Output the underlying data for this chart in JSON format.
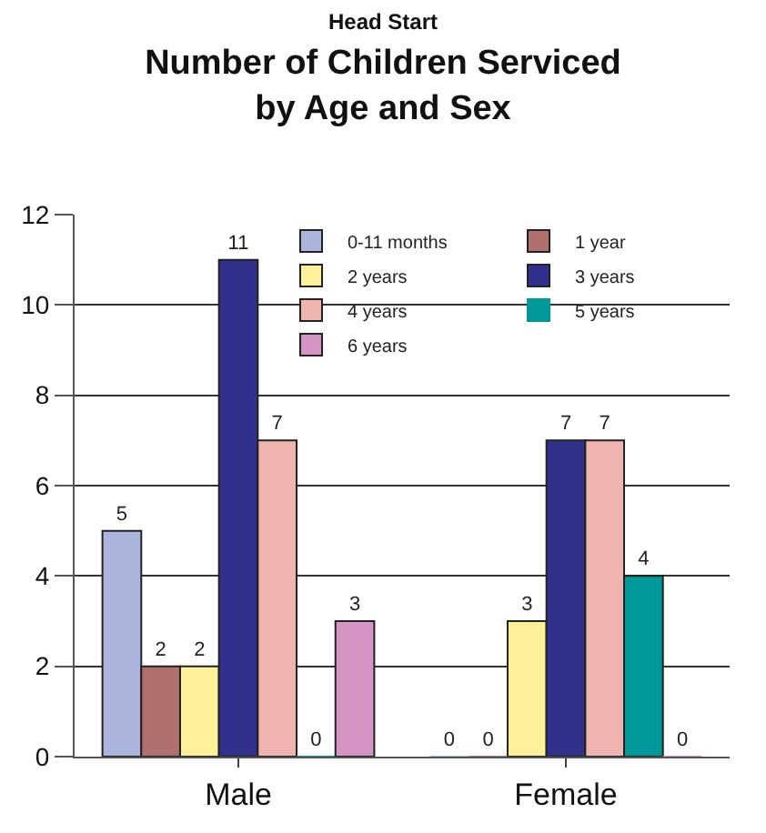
{
  "chart_data": {
    "type": "bar",
    "subtitle": "Head Start",
    "title": "Number of Children Serviced\nby Age and Sex",
    "categories": [
      "Male",
      "Female"
    ],
    "series": [
      {
        "name": "0-11 months",
        "color": "#aab4dc",
        "values": [
          5,
          0
        ]
      },
      {
        "name": "1 year",
        "color": "#b07070",
        "values": [
          2,
          0
        ]
      },
      {
        "name": "2 years",
        "color": "#fff09a",
        "values": [
          2,
          3
        ]
      },
      {
        "name": "3 years",
        "color": "#30308c",
        "values": [
          11,
          7
        ]
      },
      {
        "name": "4 years",
        "color": "#f0b4b0",
        "values": [
          7,
          7
        ]
      },
      {
        "name": "5 years",
        "color": "#009898",
        "values": [
          0,
          4
        ]
      },
      {
        "name": "6 years",
        "color": "#d494c4",
        "values": [
          3,
          0
        ]
      }
    ],
    "ylim": [
      0,
      12
    ],
    "yticks": [
      0,
      2,
      4,
      6,
      8,
      10,
      12
    ],
    "grid": "y",
    "legend": "top right",
    "data_labels": true
  }
}
